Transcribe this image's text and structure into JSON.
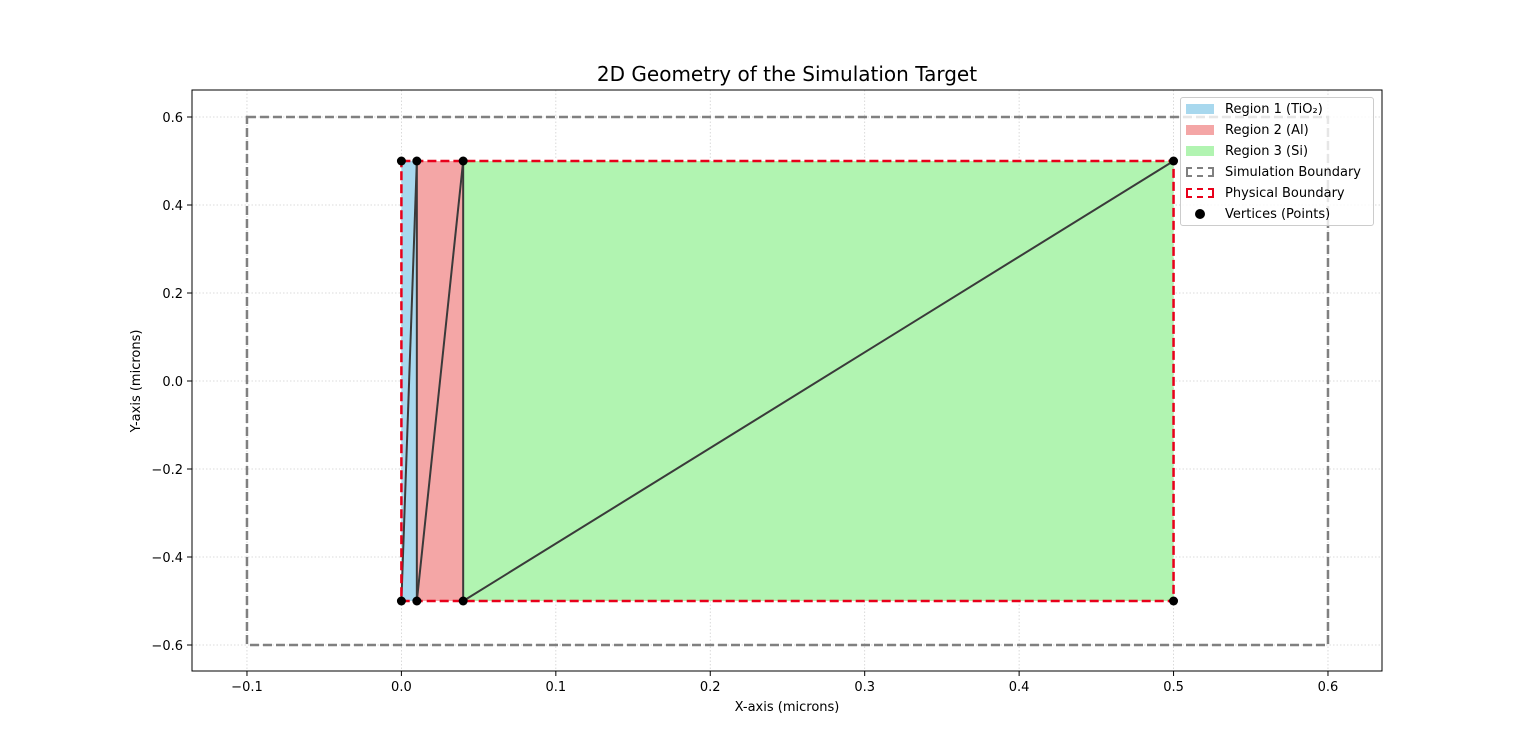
{
  "chart_data": {
    "type": "area",
    "title": "2D Geometry of the Simulation Target",
    "xlabel": "X-axis (microns)",
    "ylabel": "Y-axis (microns)",
    "xlim": [
      -0.135,
      0.635
    ],
    "ylim": [
      -0.66,
      0.66
    ],
    "xticks": [
      "−0.1",
      "0.0",
      "0.1",
      "0.2",
      "0.3",
      "0.4",
      "0.5",
      "0.6"
    ],
    "xtick_values": [
      -0.1,
      0.0,
      0.1,
      0.2,
      0.3,
      0.4,
      0.5,
      0.6
    ],
    "yticks": [
      "0.6",
      "0.4",
      "0.2",
      "0.0",
      "−0.2",
      "−0.4",
      "−0.6"
    ],
    "ytick_values": [
      0.6,
      0.4,
      0.2,
      0.0,
      -0.2,
      -0.4,
      -0.6
    ],
    "grid": true,
    "legend_position": "upper right",
    "regions": [
      {
        "name": "Region 1 (TiO₂)",
        "color": "#a8d8ee",
        "x": [
          0.0,
          0.01
        ],
        "y": [
          -0.5,
          0.5
        ]
      },
      {
        "name": "Region 2 (Al)",
        "color": "#f4a6a6",
        "x": [
          0.01,
          0.04
        ],
        "y": [
          -0.5,
          0.5
        ]
      },
      {
        "name": "Region 3 (Si)",
        "color": "#b1f4b1",
        "x": [
          0.04,
          0.5
        ],
        "y": [
          -0.5,
          0.5
        ]
      }
    ],
    "simulation_boundary": {
      "name": "Simulation Boundary",
      "color": "#808080",
      "x": [
        -0.1,
        0.6
      ],
      "y": [
        -0.6,
        0.6
      ]
    },
    "physical_boundary": {
      "name": "Physical Boundary",
      "color": "#e8001a",
      "x": [
        0.0,
        0.5
      ],
      "y": [
        -0.5,
        0.5
      ]
    },
    "vertices": {
      "name": "Vertices (Points)",
      "points": [
        [
          0.0,
          0.5
        ],
        [
          0.01,
          0.5
        ],
        [
          0.04,
          0.5
        ],
        [
          0.5,
          0.5
        ],
        [
          0.0,
          -0.5
        ],
        [
          0.01,
          -0.5
        ],
        [
          0.04,
          -0.5
        ],
        [
          0.5,
          -0.5
        ]
      ]
    },
    "mesh_edges": [
      [
        [
          0.0,
          -0.5
        ],
        [
          0.01,
          0.5
        ]
      ],
      [
        [
          0.01,
          -0.5
        ],
        [
          0.01,
          0.5
        ]
      ],
      [
        [
          0.01,
          -0.5
        ],
        [
          0.04,
          0.5
        ]
      ],
      [
        [
          0.04,
          -0.5
        ],
        [
          0.04,
          0.5
        ]
      ],
      [
        [
          0.04,
          -0.5
        ],
        [
          0.5,
          0.5
        ]
      ]
    ]
  },
  "legend": {
    "items": [
      {
        "label": "Region 1 (TiO₂)"
      },
      {
        "label": "Region 2 (Al)"
      },
      {
        "label": "Region 3 (Si)"
      },
      {
        "label": "Simulation Boundary"
      },
      {
        "label": "Physical Boundary"
      },
      {
        "label": "Vertices (Points)"
      }
    ]
  }
}
